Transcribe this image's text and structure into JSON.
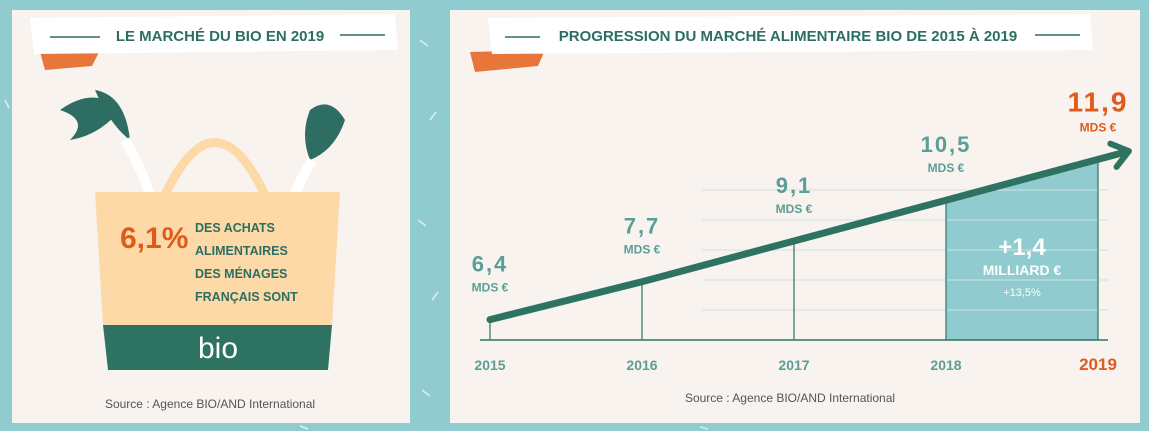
{
  "left_panel": {
    "title": "LE MARCHÉ DU BIO EN 2019",
    "share": "6,1%",
    "description": [
      "DES ACHATS",
      "ALIMENTAIRES",
      "DES MÉNAGES",
      "FRANÇAIS SONT"
    ],
    "badge": "bio",
    "source": "Source : Agence BIO/AND International"
  },
  "chart_data": {
    "type": "line",
    "title": "PROGRESSION DU MARCHÉ ALIMENTAIRE BIO DE 2015 À 2019",
    "categories": [
      "2015",
      "2016",
      "2017",
      "2018",
      "2019"
    ],
    "values": [
      6.4,
      7.7,
      9.1,
      10.5,
      11.9
    ],
    "value_labels": [
      "6,4",
      "7,7",
      "9,1",
      "10,5",
      "11,9"
    ],
    "unit_label": "MDS €",
    "color": "#2e7362",
    "label_color": "#5a9e96",
    "highlight_label_color": "#e05a1e",
    "highlight_color": "#8fcbcf",
    "ylim": [
      5.7,
      16
    ],
    "annotation": {
      "change": "+1,4",
      "unit": "MILLIARD €",
      "percent": "+13,5%"
    },
    "source": "Source : Agence BIO/AND International"
  }
}
